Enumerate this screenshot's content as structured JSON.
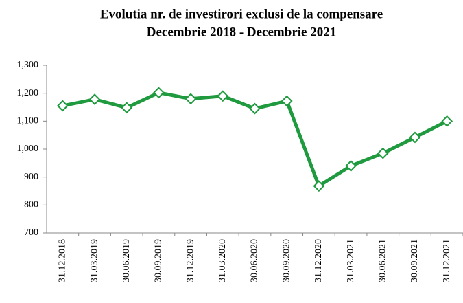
{
  "chart_data": {
    "type": "line",
    "title": [
      "Evolutia nr. de investirori  exclusi de la compensare",
      "Decembrie 2018 - Decembrie 2021"
    ],
    "categories": [
      "31.12.2018",
      "31.03.2019",
      "30.06.2019",
      "30.09.2019",
      "31.12.2019",
      "31.03.2020",
      "30.06.2020",
      "30.09.2020",
      "31.12.2020",
      "31.03.2021",
      "30.06.2021",
      "30.09.2021",
      "31.12.2021"
    ],
    "values": [
      1155,
      1178,
      1148,
      1202,
      1180,
      1190,
      1145,
      1172,
      868,
      940,
      985,
      1042,
      1100
    ],
    "color": "#1f9a3e",
    "ylim": [
      700,
      1300
    ],
    "yticks": [
      700,
      800,
      900,
      {
        "value": 1000,
        "label": "1,000"
      },
      {
        "value": 1100,
        "label": "1,100"
      },
      {
        "value": 1200,
        "label": "1,200"
      },
      {
        "value": 1300,
        "label": "1,300"
      }
    ],
    "grid": false
  }
}
